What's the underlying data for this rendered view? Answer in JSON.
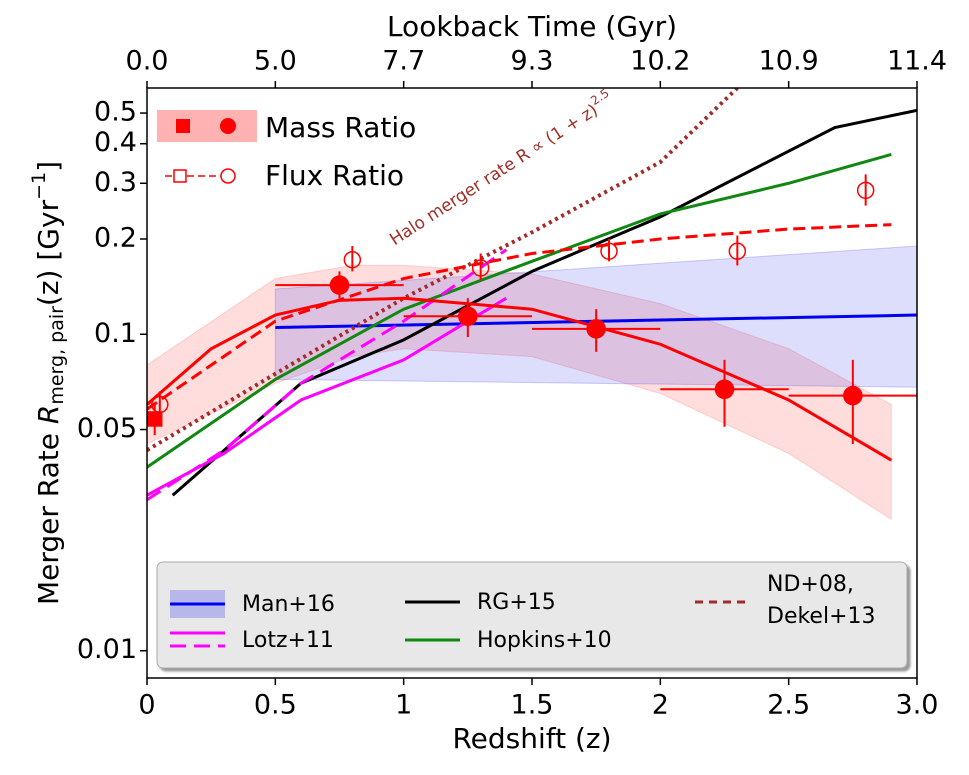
{
  "chart_data": {
    "type": "line",
    "xlabel": "Redshift (z)",
    "top_xlabel": "Lookback Time (Gyr)",
    "ylabel": [
      "Merger Rate ",
      "R",
      "merg, pair",
      "(z) [Gyr",
      "−1",
      "]"
    ],
    "annotation": [
      "Halo merger rate R ∝ (1 + z)",
      "2.5"
    ],
    "xlim": [
      0,
      3
    ],
    "xticks": [
      0,
      0.5,
      1,
      1.5,
      2,
      2.5,
      {
        "value": 3,
        "label": "3.0"
      }
    ],
    "top_xticks": [
      {
        "value": 0,
        "label": "0.0"
      },
      {
        "value": 0.5,
        "label": "5.0"
      },
      {
        "value": 1,
        "label": "7.7"
      },
      {
        "value": 1.5,
        "label": "9.3"
      },
      {
        "value": 2,
        "label": "10.2"
      },
      {
        "value": 2.5,
        "label": "10.9"
      },
      {
        "value": 3,
        "label": "11.4"
      }
    ],
    "ylim": [
      0.0082,
      0.6
    ],
    "yticks": [
      0.01,
      0.05,
      0.1,
      0.2,
      0.3,
      0.4,
      0.5
    ],
    "log_y": true,
    "series": [
      {
        "name": "Man+16",
        "color": "#0000ee",
        "x": [
          0.5,
          3.0
        ],
        "values": [
          0.105,
          0.115
        ],
        "band": {
          "x": [
            0.5,
            3.0
          ],
          "lower": [
            0.072,
            0.068
          ],
          "upper": [
            0.139,
            0.19
          ]
        }
      },
      {
        "name": "RG+15",
        "color": "#000000",
        "x": [
          0.1,
          0.6,
          1.0,
          1.5,
          2.0,
          2.68,
          3.0
        ],
        "values": [
          0.031,
          0.07,
          0.096,
          0.158,
          0.235,
          0.45,
          0.51
        ]
      },
      {
        "name": "Hopkins+10",
        "color": "#118811",
        "x": [
          0,
          0.5,
          1.0,
          1.5,
          2.0,
          2.5,
          2.9
        ],
        "values": [
          0.038,
          0.072,
          0.12,
          0.17,
          0.24,
          0.3,
          0.37
        ]
      },
      {
        "name": "Lotz+11",
        "color": "#ff00ff",
        "x": [
          0,
          0.3,
          0.6,
          1.0,
          1.4
        ],
        "values": [
          0.031,
          0.042,
          0.062,
          0.083,
          0.13
        ]
      },
      {
        "color": "#ff00ff",
        "dash": true,
        "x": [
          0,
          0.3,
          0.6,
          1.0,
          1.4
        ],
        "values": [
          0.03,
          0.043,
          0.07,
          0.11,
          0.185
        ]
      },
      {
        "name_lines": [
          "ND+08,",
          "Dekel+13"
        ],
        "color": "#a52a2a",
        "dotted": true,
        "x": [
          0,
          0.5,
          1.0,
          1.5,
          2.0,
          2.3
        ],
        "values": [
          0.043,
          0.075,
          0.13,
          0.21,
          0.35,
          0.6
        ]
      }
    ],
    "mass_ratio": {
      "name": "Mass Ratio",
      "color": "#ff0000",
      "markers": [
        "square",
        "circle",
        "circle",
        "circle",
        "circle",
        "circle"
      ],
      "x": [
        0.03,
        0.75,
        1.25,
        1.75,
        2.25,
        2.75
      ],
      "xerr": [
        0,
        0.25,
        0.25,
        0.25,
        0.25,
        0.25
      ],
      "values": [
        0.054,
        0.143,
        0.114,
        0.104,
        0.067,
        0.064
      ],
      "lower": [
        0.048,
        0.13,
        0.098,
        0.088,
        0.051,
        0.045
      ],
      "upper": [
        0.06,
        0.158,
        0.13,
        0.12,
        0.083,
        0.083
      ],
      "fit": {
        "x": [
          0,
          0.25,
          0.5,
          0.75,
          1.0,
          1.5,
          2.0,
          2.5,
          2.9
        ],
        "values": [
          0.06,
          0.09,
          0.115,
          0.128,
          0.13,
          0.12,
          0.093,
          0.062,
          0.04
        ]
      },
      "band": {
        "x": [
          0,
          0.5,
          0.8,
          1.0,
          1.5,
          2.0,
          2.5,
          2.9
        ],
        "lower": [
          0.045,
          0.07,
          0.085,
          0.09,
          0.085,
          0.065,
          0.042,
          0.026
        ],
        "upper": [
          0.08,
          0.15,
          0.165,
          0.165,
          0.155,
          0.125,
          0.09,
          0.06
        ]
      }
    },
    "flux_ratio": {
      "name": "Flux Ratio",
      "color": "#ff0000",
      "x": [
        0.05,
        0.8,
        1.3,
        1.8,
        2.3,
        2.8
      ],
      "values": [
        0.06,
        0.172,
        0.162,
        0.183,
        0.183,
        0.285
      ],
      "lower": [
        0.054,
        0.158,
        0.148,
        0.17,
        0.165,
        0.255
      ],
      "upper": [
        0.066,
        0.19,
        0.18,
        0.2,
        0.205,
        0.32
      ],
      "fit": {
        "x": [
          0,
          0.5,
          1.0,
          1.5,
          2.0,
          2.5,
          2.9
        ],
        "values": [
          0.058,
          0.11,
          0.15,
          0.18,
          0.2,
          0.215,
          0.222
        ]
      }
    }
  }
}
